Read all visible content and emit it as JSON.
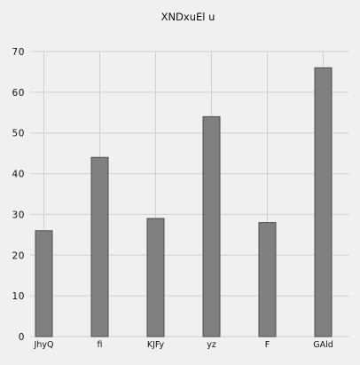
{
  "chart_data": {
    "type": "bar",
    "title": "XNDxuEl u",
    "categories": [
      "JhyQ",
      "fi",
      "KJFy",
      "yz",
      "F",
      "GAld"
    ],
    "values": [
      26,
      44,
      29,
      54,
      28,
      66
    ],
    "ylim": [
      0,
      70
    ],
    "yticks": [
      0,
      10,
      20,
      30,
      40,
      50,
      60,
      70
    ],
    "xlabel": "",
    "ylabel": "",
    "grid": true,
    "bar_color": "#808080",
    "bar_edge_color": "#4d4d4d",
    "grid_color": "#d0d0d0",
    "background_color": "#f0f0f0"
  }
}
